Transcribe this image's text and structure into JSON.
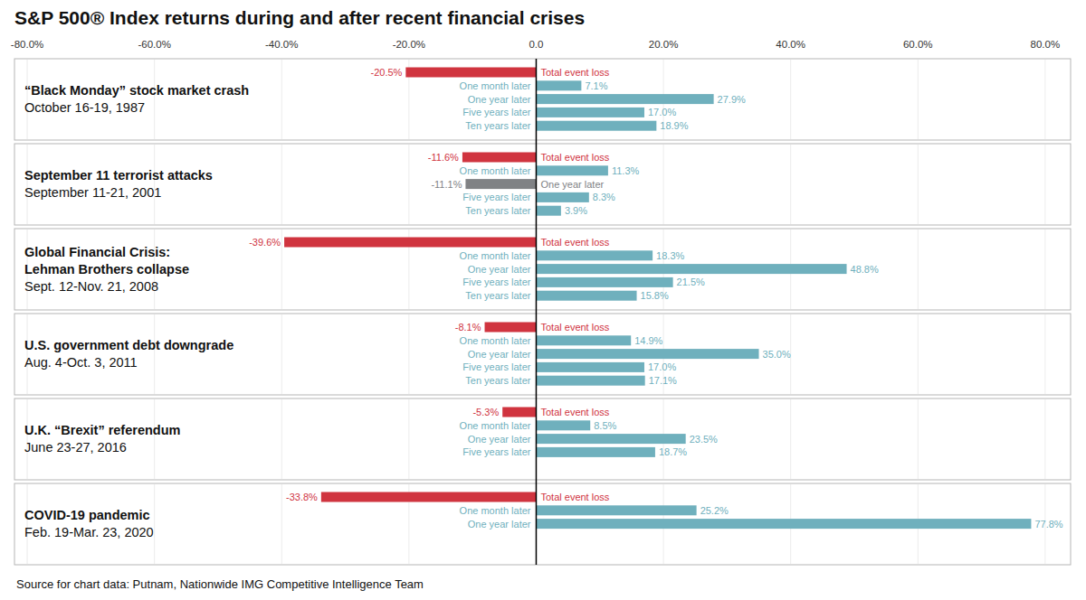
{
  "title": "S&P 500® Index returns during and after recent financial crises",
  "source": "Source for chart data: Putnam, Nationwide IMG Competitive Intelligence Team",
  "chart_data": [
    {
      "type": "bar",
      "orientation": "horizontal",
      "title": [
        "“Black Monday” stock market crash"
      ],
      "subtitle": "October 16-19, 1987",
      "categories": [
        "Total event loss",
        "One month later",
        "One year later",
        "Five years later",
        "Ten years later"
      ],
      "values": [
        -20.5,
        7.1,
        27.9,
        17.0,
        18.9
      ],
      "value_labels": [
        "-20.5%",
        "7.1%",
        "27.9%",
        "17.0%",
        "18.9%"
      ],
      "colors": [
        "#d0343f",
        "#6fb0bd",
        "#6fb0bd",
        "#6fb0bd",
        "#6fb0bd"
      ],
      "xlim": [
        -82,
        84
      ],
      "xticks": [
        {
          "value": -80,
          "label": "-80.0%"
        },
        {
          "value": -60,
          "label": "-60.0%"
        },
        {
          "value": -40,
          "label": "-40.0%"
        },
        {
          "value": -20,
          "label": "-20.0%"
        },
        {
          "value": 0,
          "label": "0.0"
        },
        {
          "value": 20,
          "label": "20.0%"
        },
        {
          "value": 40,
          "label": "40.0%"
        },
        {
          "value": 60,
          "label": "60.0%"
        },
        {
          "value": 80,
          "label": "80.0%"
        }
      ],
      "grid": true,
      "data_labels": true,
      "tick_labels": "x"
    },
    {
      "type": "bar",
      "orientation": "horizontal",
      "title": [
        "September 11 terrorist attacks"
      ],
      "subtitle": "September 11-21, 2001",
      "categories": [
        "Total event loss",
        "One month later",
        "One year later",
        "Five years later",
        "Ten years later"
      ],
      "values": [
        -11.6,
        11.3,
        -11.1,
        8.3,
        3.9
      ],
      "value_labels": [
        "-11.6%",
        "11.3%",
        "-11.1%",
        "8.3%",
        "3.9%"
      ],
      "colors": [
        "#d0343f",
        "#6fb0bd",
        "#808285",
        "#6fb0bd",
        "#6fb0bd"
      ],
      "xlim": [
        -82,
        84
      ],
      "xticks": [
        -80,
        -60,
        -40,
        -20,
        0,
        20,
        40,
        60,
        80
      ],
      "grid": true,
      "data_labels": true,
      "tick_labels": false
    },
    {
      "type": "bar",
      "orientation": "horizontal",
      "title": [
        "Global Financial Crisis:",
        "Lehman Brothers collapse"
      ],
      "subtitle": "Sept. 12-Nov. 21, 2008",
      "categories": [
        "Total event loss",
        "One month later",
        "One year later",
        "Five years later",
        "Ten years later"
      ],
      "values": [
        -39.6,
        18.3,
        48.8,
        21.5,
        15.8
      ],
      "value_labels": [
        "-39.6%",
        "18.3%",
        "48.8%",
        "21.5%",
        "15.8%"
      ],
      "colors": [
        "#d0343f",
        "#6fb0bd",
        "#6fb0bd",
        "#6fb0bd",
        "#6fb0bd"
      ],
      "xlim": [
        -82,
        84
      ],
      "xticks": [
        -80,
        -60,
        -40,
        -20,
        0,
        20,
        40,
        60,
        80
      ],
      "grid": true,
      "data_labels": true,
      "tick_labels": false
    },
    {
      "type": "bar",
      "orientation": "horizontal",
      "title": [
        "U.S. government debt downgrade"
      ],
      "subtitle": "Aug. 4-Oct. 3, 2011",
      "categories": [
        "Total event loss",
        "One month later",
        "One year later",
        "Five years later",
        "Ten years later"
      ],
      "values": [
        -8.1,
        14.9,
        35.0,
        17.0,
        17.1
      ],
      "value_labels": [
        "-8.1%",
        "14.9%",
        "35.0%",
        "17.0%",
        "17.1%"
      ],
      "colors": [
        "#d0343f",
        "#6fb0bd",
        "#6fb0bd",
        "#6fb0bd",
        "#6fb0bd"
      ],
      "xlim": [
        -82,
        84
      ],
      "xticks": [
        -80,
        -60,
        -40,
        -20,
        0,
        20,
        40,
        60,
        80
      ],
      "grid": true,
      "data_labels": true,
      "tick_labels": false
    },
    {
      "type": "bar",
      "orientation": "horizontal",
      "title": [
        "U.K. “Brexit” referendum"
      ],
      "subtitle": "June 23-27, 2016",
      "categories": [
        "Total event loss",
        "One month later",
        "One year later",
        "Five years later"
      ],
      "values": [
        -5.3,
        8.5,
        23.5,
        18.7
      ],
      "value_labels": [
        "-5.3%",
        "8.5%",
        "23.5%",
        "18.7%"
      ],
      "colors": [
        "#d0343f",
        "#6fb0bd",
        "#6fb0bd",
        "#6fb0bd"
      ],
      "xlim": [
        -82,
        84
      ],
      "xticks": [
        -80,
        -60,
        -40,
        -20,
        0,
        20,
        40,
        60,
        80
      ],
      "grid": true,
      "data_labels": true,
      "tick_labels": false
    },
    {
      "type": "bar",
      "orientation": "horizontal",
      "title": [
        "COVID-19 pandemic"
      ],
      "subtitle": "Feb. 19-Mar. 23, 2020",
      "categories": [
        "Total event loss",
        "One month later",
        "One year later"
      ],
      "values": [
        -33.8,
        25.2,
        77.8
      ],
      "value_labels": [
        "-33.8%",
        "25.2%",
        "77.8%"
      ],
      "colors": [
        "#d0343f",
        "#6fb0bd",
        "#6fb0bd"
      ],
      "xlim": [
        -82,
        84
      ],
      "xticks": [
        -80,
        -60,
        -40,
        -20,
        0,
        20,
        40,
        60,
        80
      ],
      "grid": true,
      "data_labels": true,
      "tick_labels": false
    }
  ]
}
